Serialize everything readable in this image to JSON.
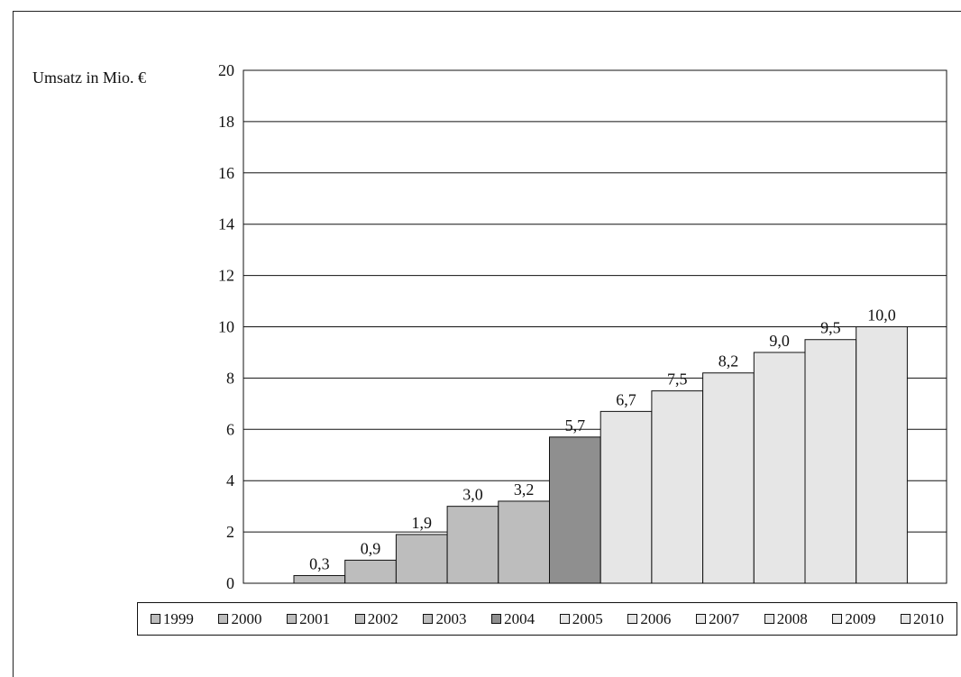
{
  "chart_data": {
    "type": "bar",
    "ylabel": "Umsatz in Mio. €",
    "ylim": [
      0,
      20
    ],
    "yticks": [
      "0",
      "2",
      "4",
      "6",
      "8",
      "10",
      "12",
      "14",
      "16",
      "18",
      "20"
    ],
    "grid": "horizontal",
    "legend_placement": "bottom",
    "categories": [
      "1999",
      "2000",
      "2001",
      "2002",
      "2003",
      "2004",
      "2005",
      "2006",
      "2007",
      "2008",
      "2009",
      "2010"
    ],
    "values": [
      0.3,
      0.9,
      1.9,
      3.0,
      3.2,
      5.7,
      6.7,
      7.5,
      8.2,
      9.0,
      9.5,
      10.0
    ],
    "data_labels": [
      "0,3",
      "0,9",
      "1,9",
      "3,0",
      "3,2",
      "5,7",
      "6,7",
      "7,5",
      "8,2",
      "9,0",
      "9,5",
      "10,0"
    ],
    "colors": [
      "#bdbdbd",
      "#bdbdbd",
      "#bdbdbd",
      "#bdbdbd",
      "#bdbdbd",
      "#8f8f8f",
      "#e6e6e6",
      "#e6e6e6",
      "#e6e6e6",
      "#e6e6e6",
      "#e6e6e6",
      "#e6e6e6"
    ]
  }
}
